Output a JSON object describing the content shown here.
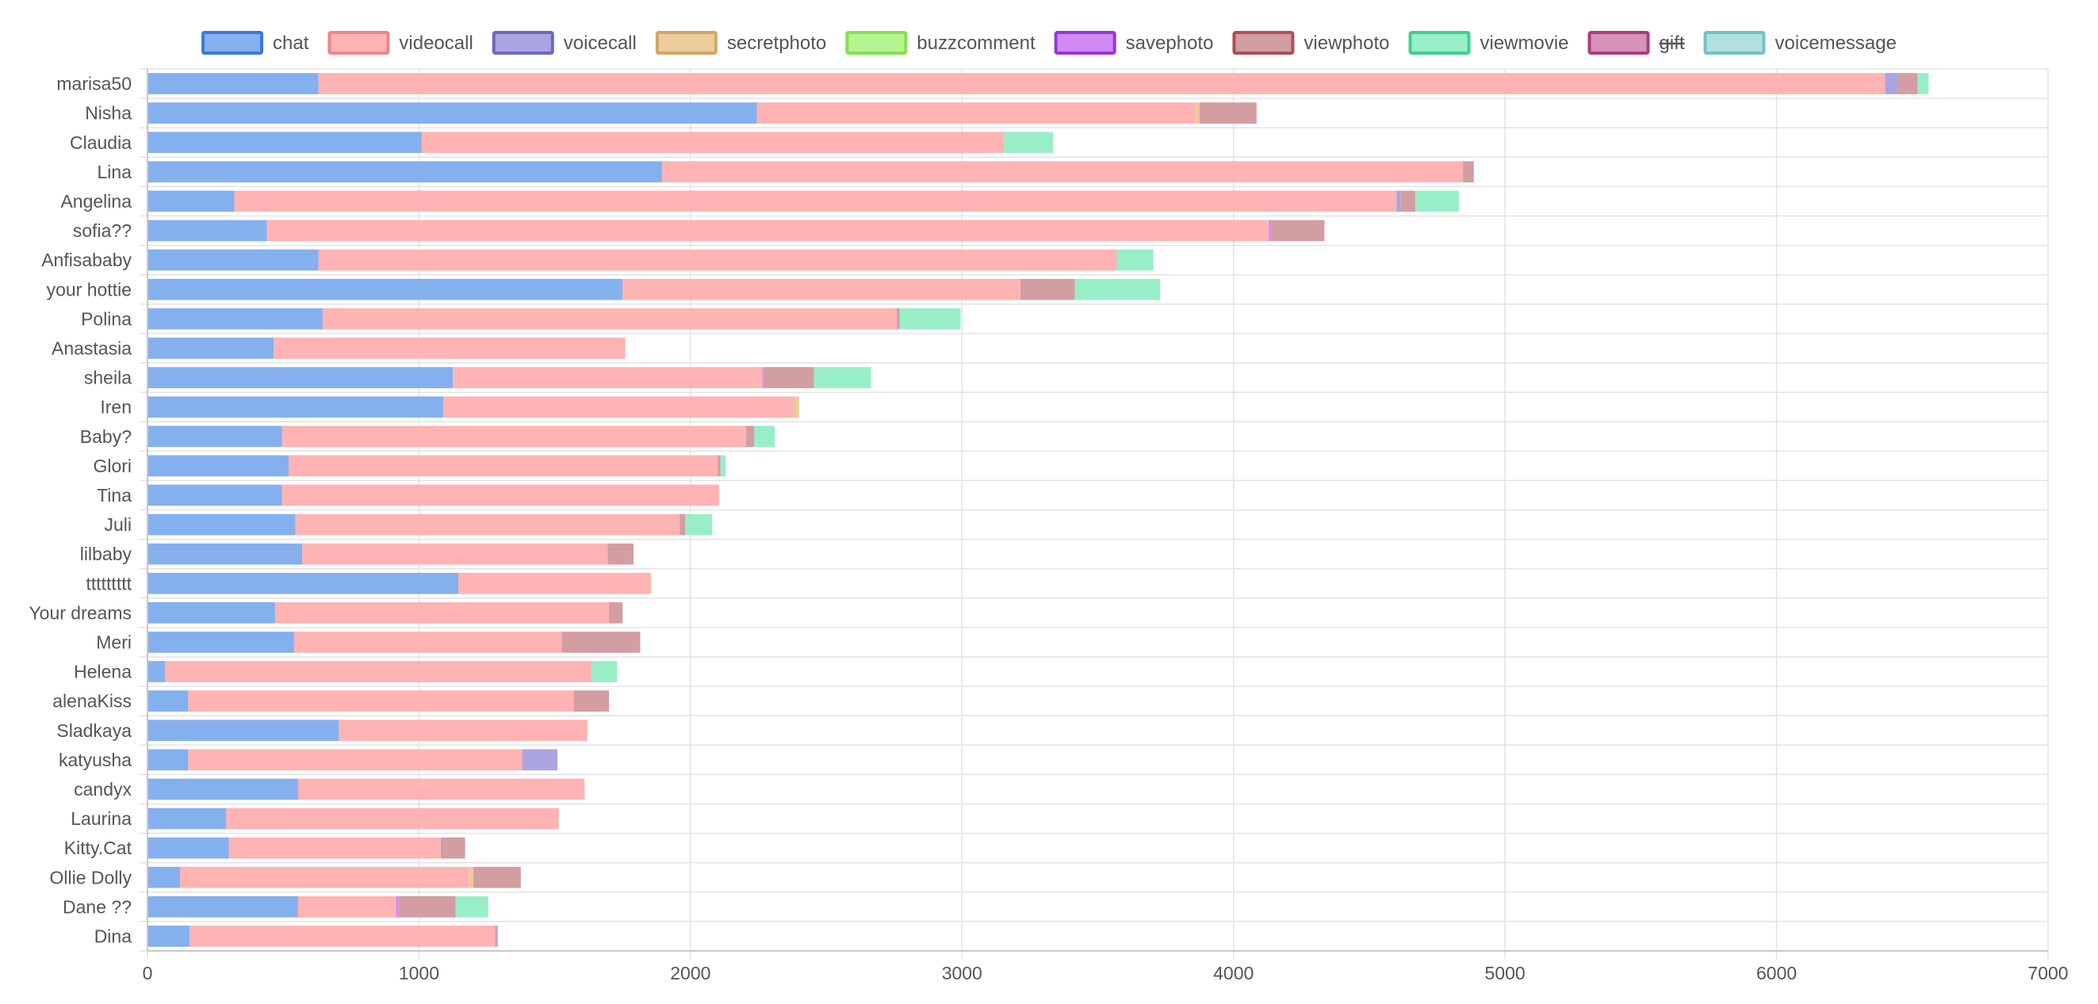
{
  "chart_data": {
    "type": "bar",
    "orientation": "horizontal",
    "stacked": true,
    "legend_position": "top",
    "grid": true,
    "xlim": [
      0,
      7000
    ],
    "xticks": [
      0,
      1000,
      2000,
      3000,
      4000,
      5000,
      6000,
      7000
    ],
    "categories": [
      "marisa50",
      "Nisha",
      "Claudia",
      "Lina",
      "Angelina",
      "sofia??",
      "Anfisababy",
      "your hottie",
      "Polina",
      "Anastasia",
      "sheila",
      "Iren",
      "Baby?",
      "Glori",
      "Tina",
      "Juli",
      "lilbaby",
      "ttttttttt",
      "Your dreams",
      "Meri",
      "Helena",
      "alenaKiss",
      "Sladkaya",
      "katyusha",
      "candyx",
      "Laurina",
      "Kitty.Cat",
      "Ollie Dolly",
      "Dane ??",
      "Dina"
    ],
    "series": [
      {
        "name": "chat",
        "color": "#85b0ee",
        "border": "#3a79d9",
        "values": [
          630,
          2245,
          1010,
          1895,
          320,
          440,
          630,
          1750,
          645,
          465,
          1125,
          1090,
          495,
          520,
          495,
          545,
          570,
          1145,
          470,
          540,
          65,
          150,
          705,
          150,
          555,
          290,
          300,
          120,
          555,
          155
        ]
      },
      {
        "name": "videocall",
        "color": "#ffb3b3",
        "border": "#f08585",
        "values": [
          5770,
          1615,
          2145,
          2950,
          4280,
          3690,
          2940,
          1465,
          2115,
          1295,
          1140,
          1290,
          1710,
          1580,
          1610,
          1415,
          1125,
          710,
          1230,
          985,
          1570,
          1420,
          915,
          1230,
          1055,
          1225,
          780,
          1065,
          360,
          1125
        ]
      },
      {
        "name": "voicecall",
        "color": "#aaa4e0",
        "border": "#6f68c0",
        "values": [
          45,
          0,
          0,
          0,
          15,
          0,
          0,
          0,
          0,
          0,
          0,
          0,
          0,
          0,
          0,
          0,
          0,
          0,
          0,
          0,
          0,
          0,
          0,
          130,
          0,
          0,
          0,
          0,
          0,
          0
        ]
      },
      {
        "name": "secretphoto",
        "color": "#ebcc9c",
        "border": "#d3a665",
        "values": [
          0,
          15,
          0,
          0,
          0,
          0,
          0,
          0,
          0,
          0,
          0,
          20,
          0,
          0,
          0,
          0,
          0,
          0,
          0,
          0,
          0,
          0,
          0,
          0,
          0,
          0,
          0,
          15,
          0,
          0
        ]
      },
      {
        "name": "buzzcomment",
        "color": "#b5f58f",
        "border": "#86e04f",
        "values": [
          0,
          0,
          0,
          0,
          0,
          0,
          0,
          0,
          0,
          0,
          0,
          0,
          0,
          0,
          0,
          0,
          0,
          0,
          0,
          0,
          0,
          0,
          0,
          0,
          0,
          0,
          0,
          0,
          0,
          0
        ]
      },
      {
        "name": "savephoto",
        "color": "#d08bf2",
        "border": "#9a35d8",
        "values": [
          0,
          0,
          0,
          0,
          0,
          10,
          0,
          0,
          0,
          0,
          5,
          0,
          0,
          0,
          0,
          0,
          0,
          0,
          0,
          0,
          0,
          0,
          0,
          0,
          0,
          0,
          0,
          0,
          10,
          0
        ]
      },
      {
        "name": "viewphoto",
        "color": "#d39ea1",
        "border": "#b14e56",
        "values": [
          75,
          210,
          0,
          40,
          55,
          195,
          0,
          200,
          10,
          0,
          185,
          0,
          30,
          10,
          0,
          20,
          95,
          0,
          50,
          290,
          0,
          130,
          0,
          0,
          0,
          0,
          90,
          175,
          210,
          10
        ]
      },
      {
        "name": "viewmovie",
        "color": "#98efc7",
        "border": "#3fd18c",
        "values": [
          40,
          0,
          180,
          0,
          160,
          0,
          135,
          315,
          225,
          0,
          210,
          0,
          75,
          20,
          0,
          100,
          0,
          0,
          0,
          0,
          95,
          0,
          0,
          0,
          0,
          0,
          0,
          0,
          120,
          0
        ]
      },
      {
        "name": "gift",
        "color": "#d493b8",
        "border": "#ad3c7f",
        "hidden": true,
        "values": [
          0,
          0,
          0,
          0,
          0,
          0,
          0,
          0,
          0,
          0,
          0,
          0,
          0,
          0,
          0,
          0,
          0,
          0,
          0,
          0,
          0,
          0,
          0,
          0,
          0,
          0,
          0,
          0,
          0,
          0
        ]
      },
      {
        "name": "voicemessage",
        "color": "#b3dfe0",
        "border": "#72c2c3",
        "values": [
          0,
          0,
          0,
          0,
          0,
          0,
          0,
          0,
          0,
          0,
          0,
          0,
          0,
          0,
          0,
          0,
          0,
          0,
          0,
          0,
          0,
          0,
          0,
          0,
          0,
          0,
          0,
          0,
          0,
          0
        ]
      }
    ]
  }
}
